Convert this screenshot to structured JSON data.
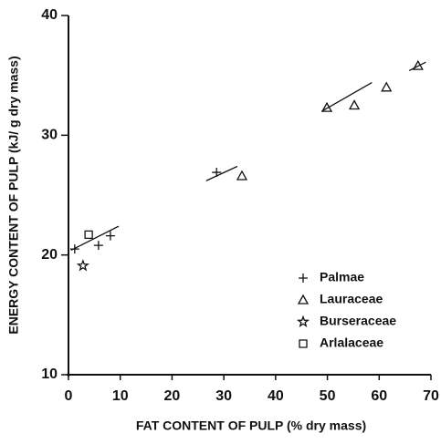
{
  "chart_data": {
    "type": "scatter",
    "x_label": "FAT CONTENT OF PULP (% dry mass)",
    "y_label": "ENERGY CONTENT OF PULP (kJ/ g dry mass)",
    "xlim": [
      0,
      70
    ],
    "xticks": [
      0,
      10,
      20,
      30,
      40,
      50,
      60,
      70
    ],
    "ylim": [
      10,
      40
    ],
    "yticks": [
      10,
      20,
      30,
      40
    ],
    "legend": "lower right",
    "series": [
      {
        "name": "Palmae",
        "marker": "plus",
        "color": "#111111",
        "x": [
          1.2,
          5.8,
          8.1,
          28.6
        ],
        "values": [
          20.5,
          20.8,
          21.6,
          26.9
        ]
      },
      {
        "name": "Lauraceae",
        "marker": "triangle",
        "color": "#111111",
        "x": [
          33.5,
          49.9,
          55.2,
          61.4,
          67.5
        ],
        "values": [
          26.6,
          32.3,
          32.5,
          34.0,
          35.8
        ]
      },
      {
        "name": "Burseraceae",
        "marker": "star",
        "color": "#111111",
        "x": [
          2.8
        ],
        "values": [
          19.1
        ]
      },
      {
        "name": "Arlalaceae",
        "marker": "square",
        "color": "#111111",
        "x": [
          3.9
        ],
        "values": [
          21.7
        ]
      }
    ],
    "fit_lines": [
      {
        "x": [
          0.5,
          9.7
        ],
        "values": [
          20.4,
          22.4
        ]
      },
      {
        "x": [
          26.6,
          32.6
        ],
        "values": [
          26.2,
          27.4
        ]
      },
      {
        "x": [
          48.9,
          58.6
        ],
        "values": [
          32.0,
          34.4
        ]
      },
      {
        "x": [
          65.8,
          69.0
        ],
        "values": [
          35.4,
          36.1
        ]
      }
    ]
  }
}
